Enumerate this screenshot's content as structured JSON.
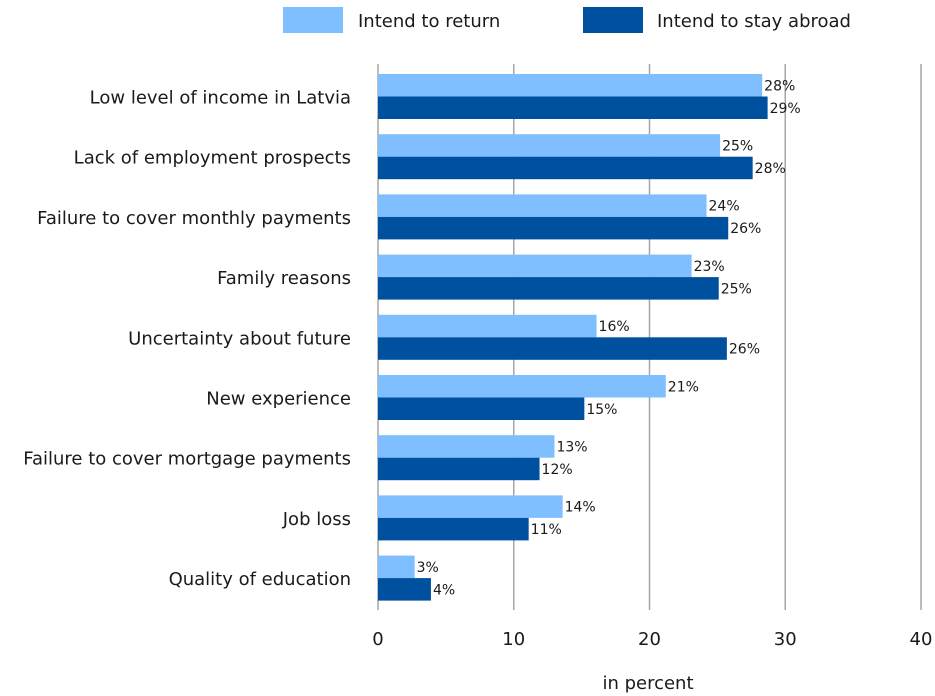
{
  "chart_data": {
    "type": "bar",
    "orientation": "horizontal",
    "categories": [
      "Low level of income in Latvia",
      "Lack of employment prospects",
      "Failure to cover monthly payments",
      "Family reasons",
      "Uncertainty about future",
      "New experience",
      "Failure to cover mortgage payments",
      "Job loss",
      "Quality of education"
    ],
    "series": [
      {
        "name": "Intend to return",
        "color": "#7fbfff",
        "values": [
          28.3,
          25.2,
          24.2,
          23.1,
          16.1,
          21.2,
          13.0,
          13.6,
          2.7
        ],
        "labels": [
          "28%",
          "25%",
          "24%",
          "23%",
          "16%",
          "21%",
          "13%",
          "14%",
          "3%"
        ]
      },
      {
        "name": "Intend to stay abroad",
        "color": "#0050a0",
        "values": [
          28.7,
          27.6,
          25.8,
          25.1,
          25.7,
          15.2,
          11.9,
          11.1,
          3.9
        ],
        "labels": [
          "29%",
          "28%",
          "26%",
          "25%",
          "26%",
          "15%",
          "12%",
          "11%",
          "4%"
        ]
      }
    ],
    "xlim": [
      0,
      40
    ],
    "xticks": [
      "0",
      "10",
      "20",
      "30",
      "40"
    ],
    "xlabel": "in percent",
    "ylabel": "",
    "title": "",
    "grid": true,
    "legend_position": "top"
  }
}
